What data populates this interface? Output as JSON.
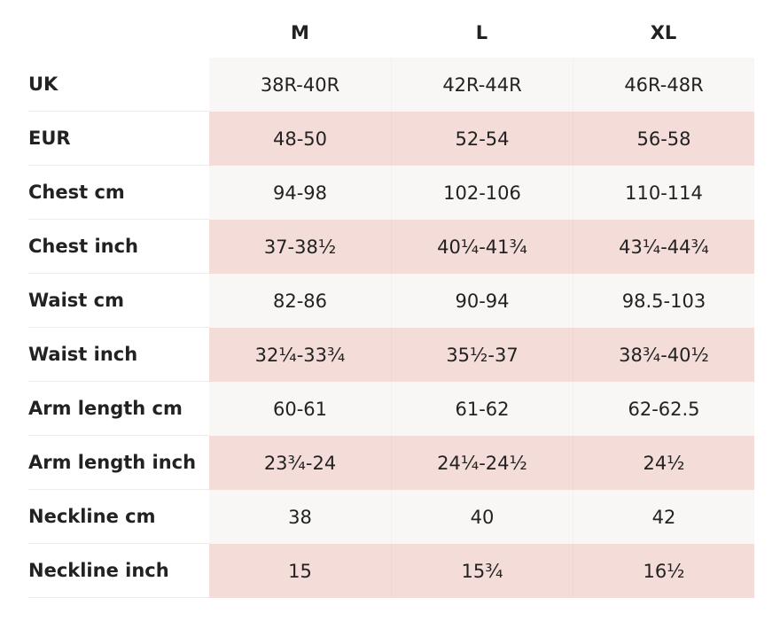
{
  "table": {
    "columns": [
      "M",
      "L",
      "XL"
    ],
    "rows": [
      [
        "UK",
        "38R-40R",
        "42R-44R",
        "46R-48R"
      ],
      [
        "EUR",
        "48-50",
        "52-54",
        "56-58"
      ],
      [
        "Chest cm",
        "94-98",
        "102-106",
        "110-114"
      ],
      [
        "Chest inch",
        "37-38½",
        "40¼-41¾",
        "43¼-44¾"
      ],
      [
        "Waist cm",
        "82-86",
        "90-94",
        "98.5-103"
      ],
      [
        "Waist inch",
        "32¼-33¾",
        "35½-37",
        "38¾-40½"
      ],
      [
        "Arm length cm",
        "60-61",
        "61-62",
        "62-62.5"
      ],
      [
        "Arm length inch",
        "23¾-24",
        "24¼-24½",
        "24½"
      ],
      [
        "Neckline cm",
        "38",
        "40",
        "42"
      ],
      [
        "Neckline inch",
        "15",
        "15¾",
        "16½"
      ]
    ]
  }
}
